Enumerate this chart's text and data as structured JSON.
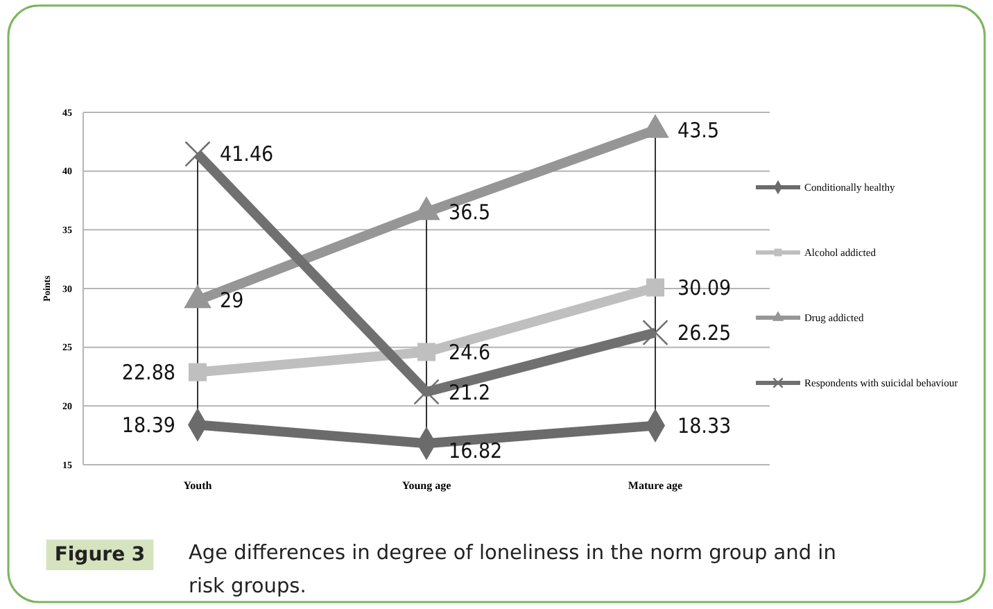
{
  "chart_data": {
    "type": "line",
    "categories": [
      "Youth",
      "Young age",
      "Mature age"
    ],
    "ylabel": "Points",
    "ylim": [
      15,
      45
    ],
    "yticks": [
      15,
      20,
      25,
      30,
      35,
      40,
      45
    ],
    "grid": true,
    "legend": "right",
    "data_labels": true,
    "line_style": "solid",
    "series": [
      {
        "name": "Conditionally healthy",
        "color": "#6b6b6b",
        "marker": "diamond",
        "values": [
          18.39,
          16.82,
          18.33
        ]
      },
      {
        "name": "Alcohol addicted",
        "color": "#bfbfbf",
        "marker": "square",
        "values": [
          22.88,
          24.6,
          30.09
        ]
      },
      {
        "name": "Drug addicted",
        "color": "#969696",
        "marker": "triangle",
        "values": [
          29,
          36.5,
          43.5
        ]
      },
      {
        "name": "Respondents with suicidal behaviour",
        "color": "#707070",
        "marker": "cross",
        "values": [
          41.46,
          21.2,
          26.25
        ]
      }
    ],
    "annotations": [
      "Figure 3",
      "Age differences in degree of loneliness in the norm group and in risk groups."
    ]
  }
}
